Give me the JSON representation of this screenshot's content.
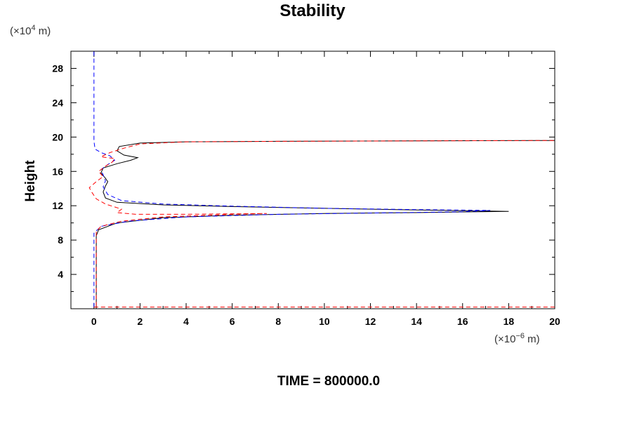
{
  "chart_data": {
    "type": "line",
    "title": "Stability",
    "ylabel": "Height",
    "xlabel": "",
    "x_unit": {
      "prefix": "(×10",
      "exp": "−6",
      "suffix": " m)"
    },
    "y_unit": {
      "prefix": "(×10",
      "exp": "4",
      "suffix": " m)"
    },
    "footer": "TIME = 800000.0",
    "xlim": [
      -1,
      20
    ],
    "ylim": [
      0,
      30
    ],
    "x_ticks": [
      0,
      2,
      4,
      6,
      8,
      10,
      12,
      14,
      16,
      18,
      20
    ],
    "y_ticks": [
      4,
      8,
      12,
      16,
      20,
      24,
      28
    ],
    "grid": false,
    "series": [
      {
        "color": "#000000",
        "dash": "solid",
        "points": [
          [
            0.1,
            0
          ],
          [
            0.1,
            8.5
          ],
          [
            0.2,
            9.2
          ],
          [
            1.0,
            10.0
          ],
          [
            3.0,
            10.6
          ],
          [
            6.0,
            10.9
          ],
          [
            10.0,
            11.1
          ],
          [
            14.0,
            11.2
          ],
          [
            18.0,
            11.35
          ],
          [
            14.0,
            11.5
          ],
          [
            10.0,
            11.7
          ],
          [
            6.0,
            11.9
          ],
          [
            3.0,
            12.1
          ],
          [
            1.0,
            12.4
          ],
          [
            0.5,
            12.9
          ],
          [
            0.4,
            13.6
          ],
          [
            0.5,
            14.3
          ],
          [
            0.6,
            14.8
          ],
          [
            0.5,
            15.2
          ],
          [
            0.3,
            15.8
          ],
          [
            0.4,
            16.4
          ],
          [
            1.0,
            16.9
          ],
          [
            1.6,
            17.3
          ],
          [
            1.9,
            17.6
          ],
          [
            1.3,
            17.9
          ],
          [
            1.0,
            18.4
          ],
          [
            1.1,
            18.9
          ],
          [
            2.0,
            19.3
          ],
          [
            4.0,
            19.45
          ],
          [
            8.0,
            19.5
          ],
          [
            14.0,
            19.55
          ],
          [
            20.0,
            19.6
          ]
        ]
      },
      {
        "color": "#0000ff",
        "dash": "dashed",
        "points": [
          [
            0.0,
            0.2
          ],
          [
            0.0,
            8.8
          ],
          [
            0.3,
            9.6
          ],
          [
            1.5,
            10.2
          ],
          [
            4.0,
            10.7
          ],
          [
            8.0,
            11.0
          ],
          [
            12.0,
            11.15
          ],
          [
            16.0,
            11.3
          ],
          [
            17.2,
            11.45
          ],
          [
            14.0,
            11.55
          ],
          [
            10.0,
            11.7
          ],
          [
            6.0,
            11.95
          ],
          [
            3.0,
            12.2
          ],
          [
            1.2,
            12.6
          ],
          [
            0.6,
            13.3
          ],
          [
            0.4,
            14.2
          ],
          [
            0.5,
            14.9
          ],
          [
            0.4,
            15.6
          ],
          [
            0.3,
            16.2
          ],
          [
            0.6,
            16.8
          ],
          [
            0.9,
            17.3
          ],
          [
            0.7,
            17.8
          ],
          [
            0.3,
            18.2
          ],
          [
            0.05,
            18.6
          ],
          [
            0.0,
            19.5
          ],
          [
            0.0,
            24.0
          ],
          [
            0.0,
            30.0
          ]
        ]
      },
      {
        "color": "#ff0000",
        "dash": "dashed",
        "points": [
          [
            0.1,
            0.3
          ],
          [
            0.1,
            9.0
          ],
          [
            0.3,
            9.6
          ],
          [
            1.2,
            10.2
          ],
          [
            3.0,
            10.7
          ],
          [
            6.0,
            11.0
          ],
          [
            7.5,
            11.1
          ],
          [
            4.0,
            11.0
          ],
          [
            1.8,
            11.0
          ],
          [
            1.0,
            11.2
          ],
          [
            1.2,
            11.6
          ],
          [
            0.5,
            12.2
          ],
          [
            0.1,
            12.8
          ],
          [
            -0.1,
            13.6
          ],
          [
            -0.2,
            14.1
          ],
          [
            0.1,
            14.8
          ],
          [
            0.4,
            15.4
          ],
          [
            0.2,
            16.0
          ],
          [
            0.5,
            16.6
          ],
          [
            0.8,
            17.1
          ],
          [
            0.9,
            17.5
          ],
          [
            0.3,
            17.7
          ],
          [
            0.7,
            18.2
          ],
          [
            1.3,
            18.7
          ],
          [
            2.0,
            19.2
          ],
          [
            4.0,
            19.45
          ],
          [
            8.0,
            19.5
          ],
          [
            14.0,
            19.55
          ],
          [
            20.0,
            19.6
          ]
        ]
      },
      {
        "color": "#ff0000",
        "dash": "dashed",
        "points": [
          [
            0.0,
            0.2
          ],
          [
            20.0,
            0.2
          ]
        ]
      }
    ]
  }
}
